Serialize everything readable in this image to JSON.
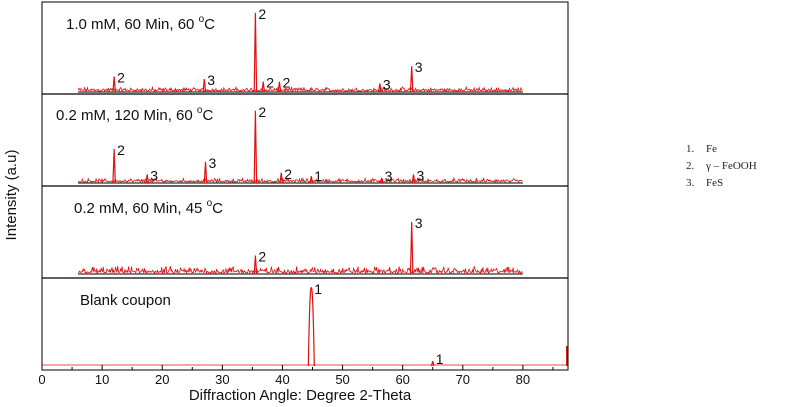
{
  "chart_data": {
    "type": "line",
    "xlabel": "Diffraction Angle: Degree 2-Theta",
    "ylabel": "Intensity (a.u)",
    "xlim": [
      0,
      87.5
    ],
    "x_ticks": [
      0,
      10,
      20,
      30,
      40,
      50,
      60,
      70,
      80
    ],
    "grid": false,
    "legend_position": "right",
    "series_color": "#dd1111",
    "legend": [
      {
        "num": "1.",
        "label": "Fe"
      },
      {
        "num": "2.",
        "label": "γ – FeOOH"
      },
      {
        "num": "3.",
        "label": "FeS"
      }
    ],
    "panels": [
      {
        "label": {
          "pre": "1.0 mM, 60 Min, 60 ",
          "sup": "o",
          "post": "C"
        },
        "x_range": [
          6,
          80
        ],
        "noise": 0.05,
        "peaks": [
          {
            "x": 12.0,
            "h": 0.18,
            "label": "2"
          },
          {
            "x": 27.0,
            "h": 0.15,
            "label": "3"
          },
          {
            "x": 35.5,
            "h": 0.92,
            "label": "2"
          },
          {
            "x": 36.8,
            "h": 0.12,
            "label": "2"
          },
          {
            "x": 39.5,
            "h": 0.12,
            "label": "2"
          },
          {
            "x": 56.2,
            "h": 0.1,
            "label": "3"
          },
          {
            "x": 61.5,
            "h": 0.3,
            "label": "3"
          }
        ]
      },
      {
        "label": {
          "pre": "0.2 mM, 120 Min, 60 ",
          "sup": "o",
          "post": "C"
        },
        "x_range": [
          6,
          80
        ],
        "noise": 0.05,
        "peaks": [
          {
            "x": 12.0,
            "h": 0.4,
            "label": "2"
          },
          {
            "x": 17.5,
            "h": 0.1,
            "label": "3"
          },
          {
            "x": 27.2,
            "h": 0.25,
            "label": "3"
          },
          {
            "x": 35.5,
            "h": 0.85,
            "label": "2"
          },
          {
            "x": 39.8,
            "h": 0.12,
            "label": "2"
          },
          {
            "x": 44.8,
            "h": 0.08,
            "label": "1"
          },
          {
            "x": 56.5,
            "h": 0.06,
            "label": "3"
          },
          {
            "x": 61.8,
            "h": 0.1,
            "label": "3"
          }
        ]
      },
      {
        "label": {
          "pre": "0.2 mM, 60 Min, 45 ",
          "sup": "o",
          "post": "C"
        },
        "x_range": [
          6,
          80
        ],
        "noise": 0.09,
        "peaks": [
          {
            "x": 35.5,
            "h": 0.22,
            "label": "2"
          },
          {
            "x": 61.5,
            "h": 0.62,
            "label": "3"
          }
        ]
      },
      {
        "label": {
          "pre": "Blank coupon",
          "sup": "",
          "post": ""
        },
        "x_range": [
          0,
          87.5
        ],
        "noise": 0.0,
        "peaks": [
          {
            "x": 44.8,
            "h": 0.93,
            "label": "1",
            "wide": true
          },
          {
            "x": 65.0,
            "h": 0.06,
            "label": "1"
          }
        ],
        "edge_spike": {
          "x": 87.3,
          "h": 0.95
        }
      }
    ]
  }
}
